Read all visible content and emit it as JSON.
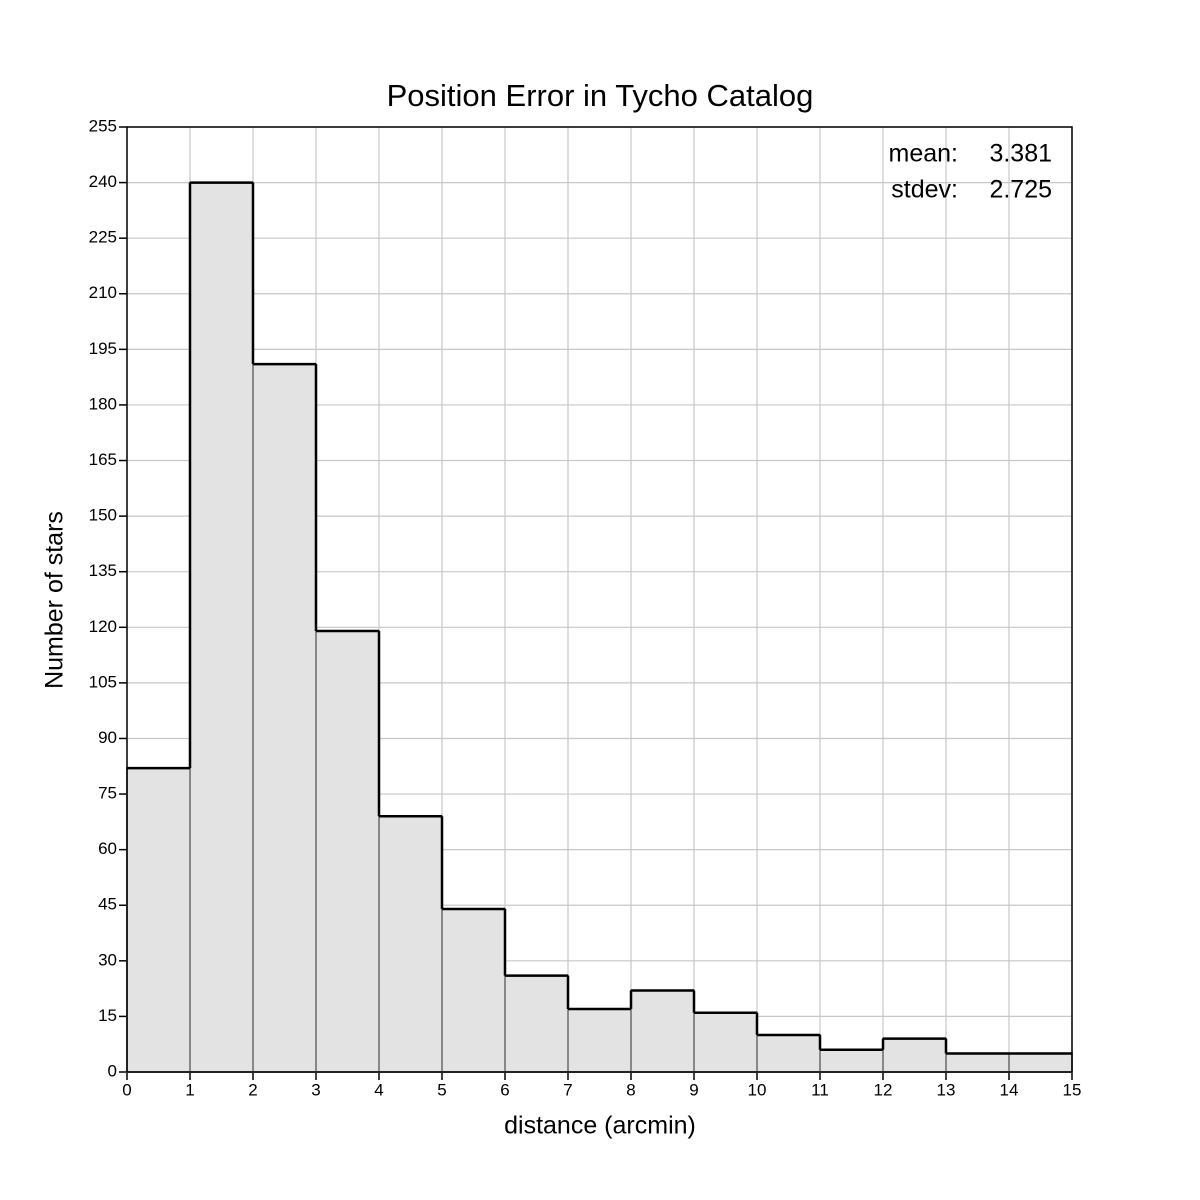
{
  "chart_data": {
    "type": "histogram",
    "title": "Position Error in Tycho Catalog",
    "x_label": "distance (arcmin)",
    "y_label": "Number of stars",
    "bins": [
      0,
      1,
      2,
      3,
      4,
      5,
      6,
      7,
      8,
      9,
      10,
      11,
      12,
      13,
      14,
      15
    ],
    "values": [
      82,
      240,
      191,
      119,
      69,
      44,
      26,
      17,
      22,
      16,
      10,
      6,
      9,
      5,
      5
    ],
    "color": "#e3e3e3",
    "xlim": [
      0,
      15
    ],
    "xticks": [
      0,
      1,
      2,
      3,
      4,
      5,
      6,
      7,
      8,
      9,
      10,
      11,
      12,
      13,
      14,
      15
    ],
    "ylim": [
      0,
      255
    ],
    "yticks": [
      0,
      15,
      30,
      45,
      60,
      75,
      90,
      105,
      120,
      135,
      150,
      165,
      180,
      195,
      210,
      225,
      240,
      255
    ],
    "grid": true,
    "annotations": [
      {
        "label": "mean:",
        "value": 3.381
      },
      {
        "label": "stdev:",
        "value": 2.725
      }
    ]
  }
}
